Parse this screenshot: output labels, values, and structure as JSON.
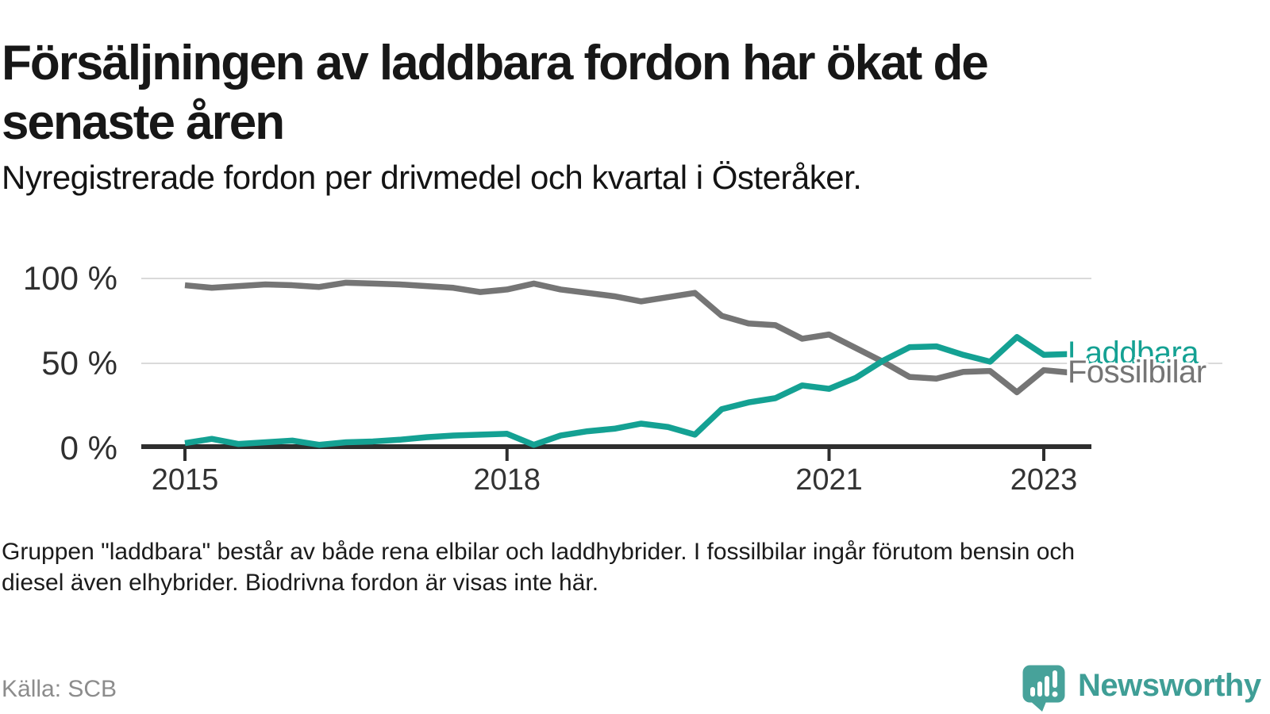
{
  "header": {
    "title": "Försäljningen av laddbara fordon har ökat de senaste åren",
    "subtitle": "Nyregistrerade fordon per drivmedel och kvartal i Österåker."
  },
  "chart_data": {
    "type": "line",
    "title": "Nyregistrerade fordon per drivmedel och kvartal i Österåker",
    "x_unit": "quarter",
    "categories": [
      "2015 Q1",
      "2015 Q2",
      "2015 Q3",
      "2015 Q4",
      "2016 Q1",
      "2016 Q2",
      "2016 Q3",
      "2016 Q4",
      "2017 Q1",
      "2017 Q2",
      "2017 Q3",
      "2017 Q4",
      "2018 Q1",
      "2018 Q2",
      "2018 Q3",
      "2018 Q4",
      "2019 Q1",
      "2019 Q2",
      "2019 Q3",
      "2019 Q4",
      "2020 Q1",
      "2020 Q2",
      "2020 Q3",
      "2020 Q4",
      "2021 Q1",
      "2021 Q2",
      "2021 Q3",
      "2021 Q4",
      "2022 Q1",
      "2022 Q2",
      "2022 Q3",
      "2022 Q4",
      "2023 Q1",
      "2023 Q2"
    ],
    "series": [
      {
        "name": "Laddbara",
        "color": "#14a193",
        "values": [
          3,
          5.5,
          2.5,
          3.5,
          4.5,
          2,
          3.5,
          4,
          5,
          6.5,
          7.5,
          8,
          8.5,
          2,
          7.5,
          10,
          11.5,
          14.5,
          12.5,
          8,
          23,
          27,
          29.5,
          37,
          35,
          41.5,
          51.5,
          59.5,
          60,
          55,
          51,
          65.5,
          55,
          55.5
        ]
      },
      {
        "name": "Fossilbilar",
        "color": "#757575",
        "values": [
          96,
          94.5,
          95.5,
          96.5,
          96,
          95,
          97.5,
          97,
          96.5,
          95.5,
          94.5,
          92,
          93.5,
          97,
          93.5,
          91.5,
          89.5,
          86.5,
          89,
          91.5,
          78,
          73.5,
          72.5,
          64.5,
          67,
          59,
          51,
          42,
          41,
          45,
          45.5,
          33,
          46,
          44.5
        ]
      }
    ],
    "xlabel": "",
    "ylabel": "",
    "ylim": [
      0,
      100
    ],
    "grid": true,
    "legend_position": "right-of-line-end",
    "y_ticks": [
      {
        "value": 100,
        "label": "100 %"
      },
      {
        "value": 50,
        "label": "50 %"
      },
      {
        "value": 0,
        "label": "0 %"
      }
    ],
    "x_ticks": [
      {
        "label": "2015",
        "quarter_index": 0
      },
      {
        "label": "2018",
        "quarter_index": 12
      },
      {
        "label": "2021",
        "quarter_index": 24
      },
      {
        "label": "2023",
        "quarter_index": 32
      }
    ]
  },
  "footer": {
    "note": "Gruppen \"laddbara\" består av både rena elbilar och laddhybrider. I fossilbilar ingår förutom bensin och diesel även elhybrider. Biodrivna fordon är visas inte här.",
    "source": "Källa: SCB"
  },
  "logo": {
    "text": "Newsworthy",
    "icon": "newsworthy-bar-chart-pin-icon",
    "color": "#3f9e96",
    "icon_color": "#47a29a"
  }
}
